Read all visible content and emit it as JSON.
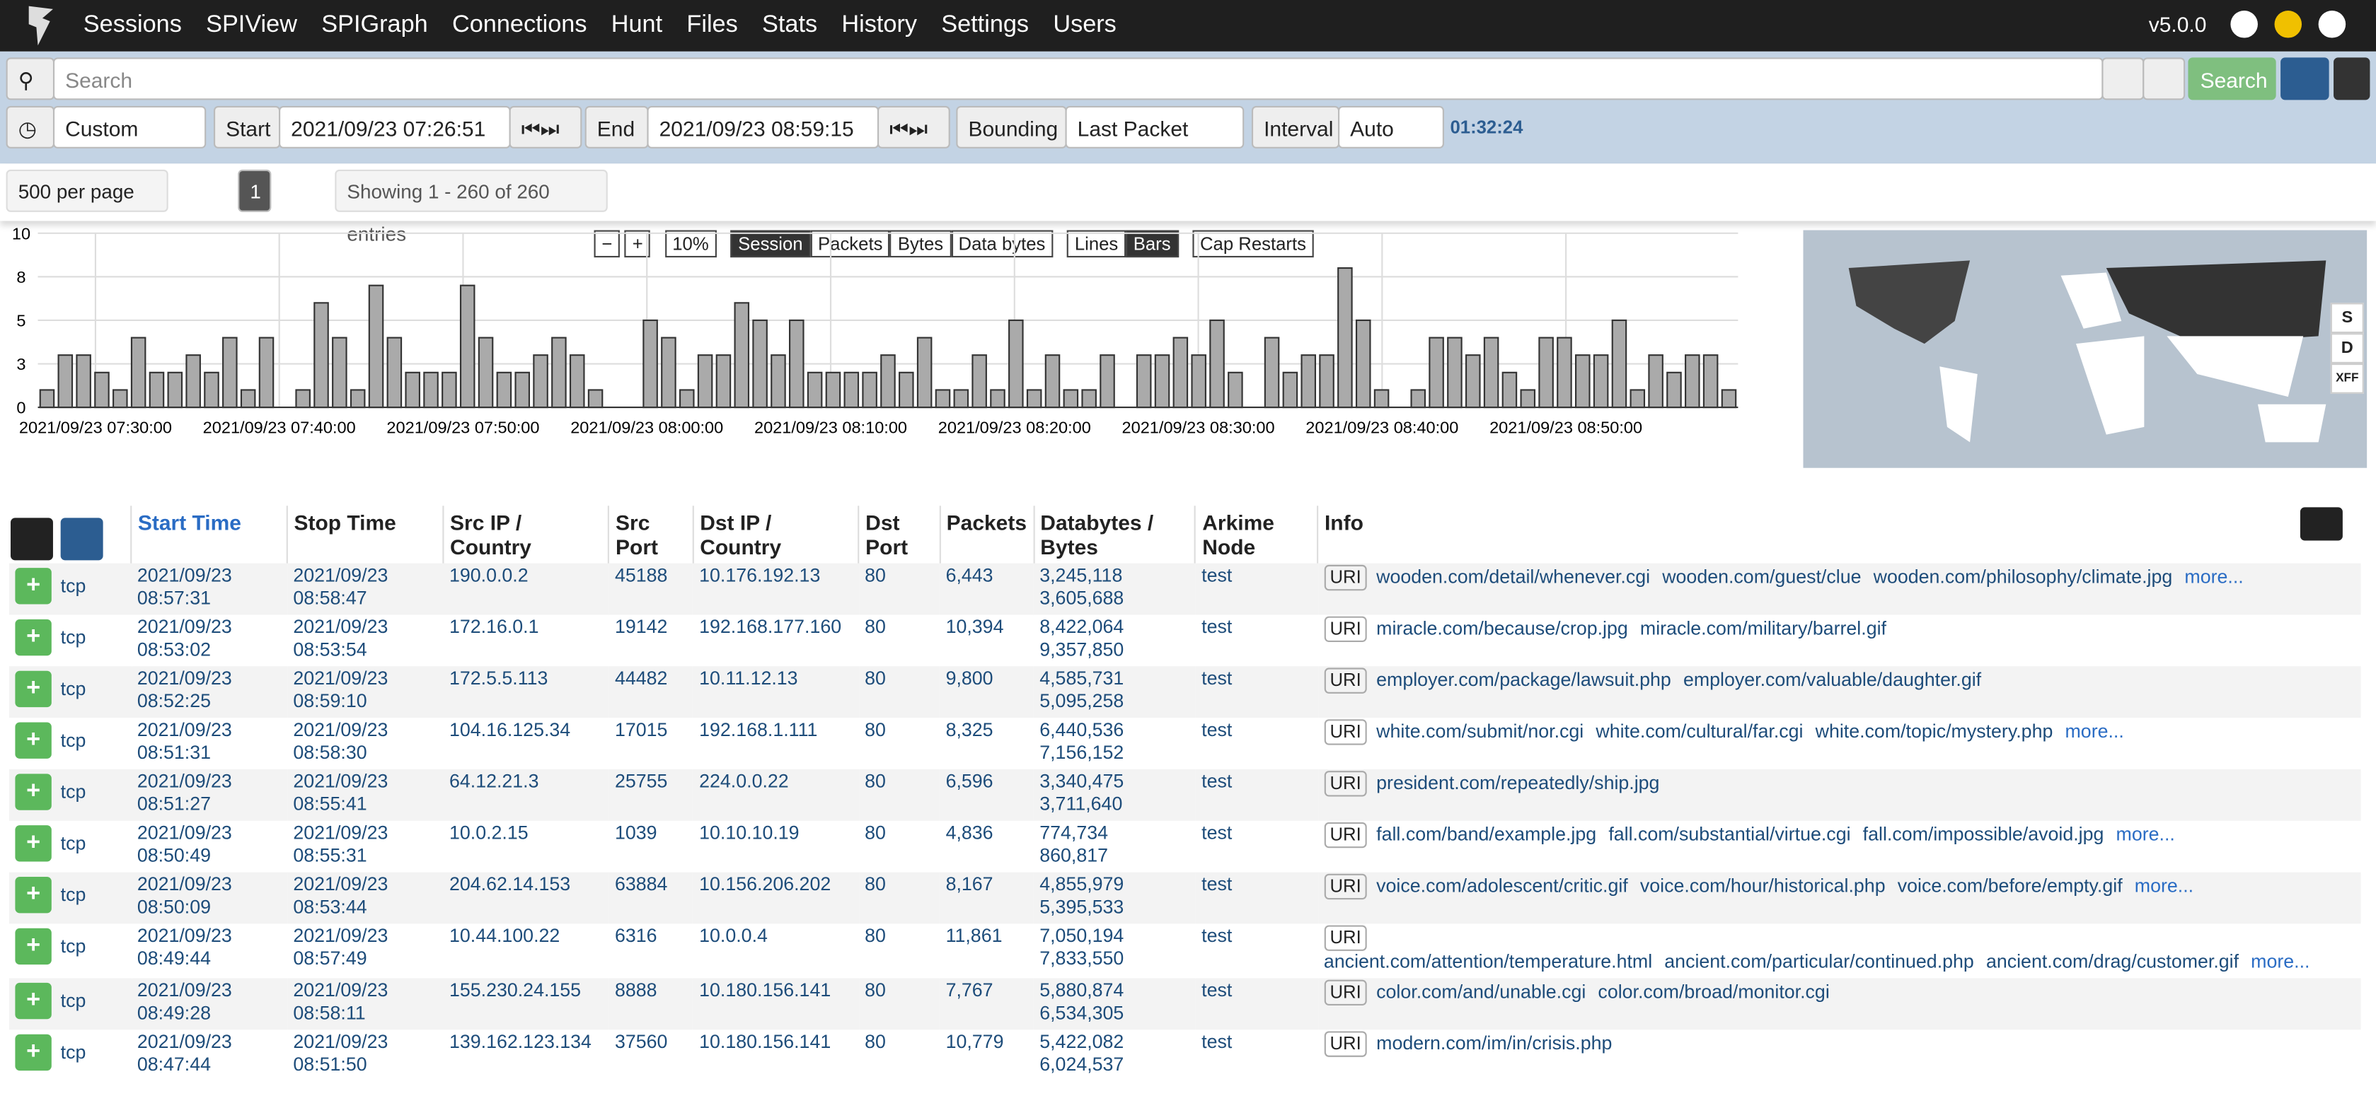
{
  "nav": {
    "items": [
      "Sessions",
      "SPIView",
      "SPIGraph",
      "Connections",
      "Hunt",
      "Files",
      "Stats",
      "History",
      "Settings",
      "Users"
    ],
    "version": "v5.0.0"
  },
  "search": {
    "placeholder": "Search",
    "button": "Search"
  },
  "time": {
    "range": "Custom",
    "start_label": "Start",
    "start": "2021/09/23 07:26:51",
    "end_label": "End",
    "end": "2021/09/23 08:59:15",
    "bounding_label": "Bounding",
    "bounding": "Last Packet",
    "interval_label": "Interval",
    "interval": "Auto",
    "duration": "01:32:24"
  },
  "paging": {
    "per_page": "500 per page",
    "page": "1",
    "showing": "Showing 1 - 260 of 260 entries"
  },
  "chart_controls": {
    "zoom": "10%",
    "types": [
      "Session",
      "Packets",
      "Bytes",
      "Data bytes"
    ],
    "styles": [
      "Lines",
      "Bars"
    ],
    "cap": "Cap Restarts"
  },
  "chart_data": {
    "type": "bar",
    "color": "#aaaaaa",
    "values": [
      1,
      3,
      3,
      2,
      1,
      4,
      2,
      2,
      3,
      2,
      4,
      1,
      4,
      0,
      1,
      6,
      4,
      1,
      7,
      4,
      2,
      2,
      2,
      7,
      4,
      2,
      2,
      3,
      4,
      3,
      1,
      0,
      0,
      5,
      4,
      1,
      3,
      3,
      6,
      5,
      3,
      5,
      2,
      2,
      2,
      2,
      3,
      2,
      4,
      1,
      1,
      3,
      1,
      5,
      1,
      3,
      1,
      1,
      3,
      0,
      3,
      3,
      4,
      3,
      5,
      2,
      0,
      4,
      2,
      3,
      3,
      8,
      5,
      1,
      0,
      1,
      4,
      4,
      3,
      4,
      2,
      1,
      4,
      4,
      3,
      3,
      5,
      1,
      3,
      2,
      3,
      3,
      1
    ],
    "ylim": [
      0,
      10
    ],
    "yticks": [
      0,
      {
        "value": 2.5,
        "label": "3"
      },
      5,
      {
        "value": 7.5,
        "label": "8"
      },
      10
    ],
    "x_labels": [
      "2021/09/23 07:30:00",
      "2021/09/23 07:40:00",
      "2021/09/23 07:50:00",
      "2021/09/23 08:00:00",
      "2021/09/23 08:10:00",
      "2021/09/23 08:20:00",
      "2021/09/23 08:30:00",
      "2021/09/23 08:40:00",
      "2021/09/23 08:50:00"
    ]
  },
  "map": {
    "buttons": [
      "S",
      "D",
      "XFF"
    ]
  },
  "table": {
    "headers": [
      "Start Time",
      "Stop Time",
      "Src IP / Country",
      "Src Port",
      "Dst IP / Country",
      "Dst Port",
      "Packets",
      "Databytes / Bytes",
      "Arkime Node",
      "Info"
    ],
    "uri": "URI",
    "more": "more...",
    "rows": [
      [
        "tcp",
        "2021/09/23 08:57:31",
        "2021/09/23 08:58:47",
        "190.0.0.2",
        "45188",
        "10.176.192.13",
        "80",
        "6,443",
        "3,245,118",
        "3,605,688",
        "test",
        [
          "wooden.com/detail/whenever.cgi",
          "wooden.com/guest/clue",
          "wooden.com/philosophy/climate.jpg"
        ]
      ],
      [
        "tcp",
        "2021/09/23 08:53:02",
        "2021/09/23 08:53:54",
        "172.16.0.1",
        "19142",
        "192.168.177.160",
        "80",
        "10,394",
        "8,422,064",
        "9,357,850",
        "test",
        [
          "miracle.com/because/crop.jpg",
          "miracle.com/military/barrel.gif"
        ]
      ],
      [
        "tcp",
        "2021/09/23 08:52:25",
        "2021/09/23 08:59:10",
        "172.5.5.113",
        "44482",
        "10.11.12.13",
        "80",
        "9,800",
        "4,585,731",
        "5,095,258",
        "test",
        [
          "employer.com/package/lawsuit.php",
          "employer.com/valuable/daughter.gif"
        ]
      ],
      [
        "tcp",
        "2021/09/23 08:51:31",
        "2021/09/23 08:58:30",
        "104.16.125.34",
        "17015",
        "192.168.1.111",
        "80",
        "8,325",
        "6,440,536",
        "7,156,152",
        "test",
        [
          "white.com/submit/nor.cgi",
          "white.com/cultural/far.cgi",
          "white.com/topic/mystery.php"
        ]
      ],
      [
        "tcp",
        "2021/09/23 08:51:27",
        "2021/09/23 08:55:41",
        "64.12.21.3",
        "25755",
        "224.0.0.22",
        "80",
        "6,596",
        "3,340,475",
        "3,711,640",
        "test",
        [
          "president.com/repeatedly/ship.jpg"
        ]
      ],
      [
        "tcp",
        "2021/09/23 08:50:49",
        "2021/09/23 08:55:31",
        "10.0.2.15",
        "1039",
        "10.10.10.19",
        "80",
        "4,836",
        "774,734",
        "860,817",
        "test",
        [
          "fall.com/band/example.jpg",
          "fall.com/substantial/virtue.cgi",
          "fall.com/impossible/avoid.jpg"
        ]
      ],
      [
        "tcp",
        "2021/09/23 08:50:09",
        "2021/09/23 08:53:44",
        "204.62.14.153",
        "63884",
        "10.156.206.202",
        "80",
        "8,167",
        "4,855,979",
        "5,395,533",
        "test",
        [
          "voice.com/adolescent/critic.gif",
          "voice.com/hour/historical.php",
          "voice.com/before/empty.gif"
        ]
      ],
      [
        "tcp",
        "2021/09/23 08:49:44",
        "2021/09/23 08:57:49",
        "10.44.100.22",
        "6316",
        "10.0.0.4",
        "80",
        "11,861",
        "7,050,194",
        "7,833,550",
        "test",
        [
          "ancient.com/attention/temperature.html",
          "ancient.com/particular/continued.php",
          "ancient.com/drag/customer.gif"
        ]
      ],
      [
        "tcp",
        "2021/09/23 08:49:28",
        "2021/09/23 08:58:11",
        "155.230.24.155",
        "8888",
        "10.180.156.141",
        "80",
        "7,767",
        "5,880,874",
        "6,534,305",
        "test",
        [
          "color.com/and/unable.cgi",
          "color.com/broad/monitor.cgi"
        ]
      ],
      [
        "tcp",
        "2021/09/23 08:47:44",
        "2021/09/23 08:51:50",
        "139.162.123.134",
        "37560",
        "10.180.156.141",
        "80",
        "10,779",
        "5,422,082",
        "6,024,537",
        "test",
        [
          "modern.com/im/in/crisis.php"
        ]
      ]
    ]
  }
}
